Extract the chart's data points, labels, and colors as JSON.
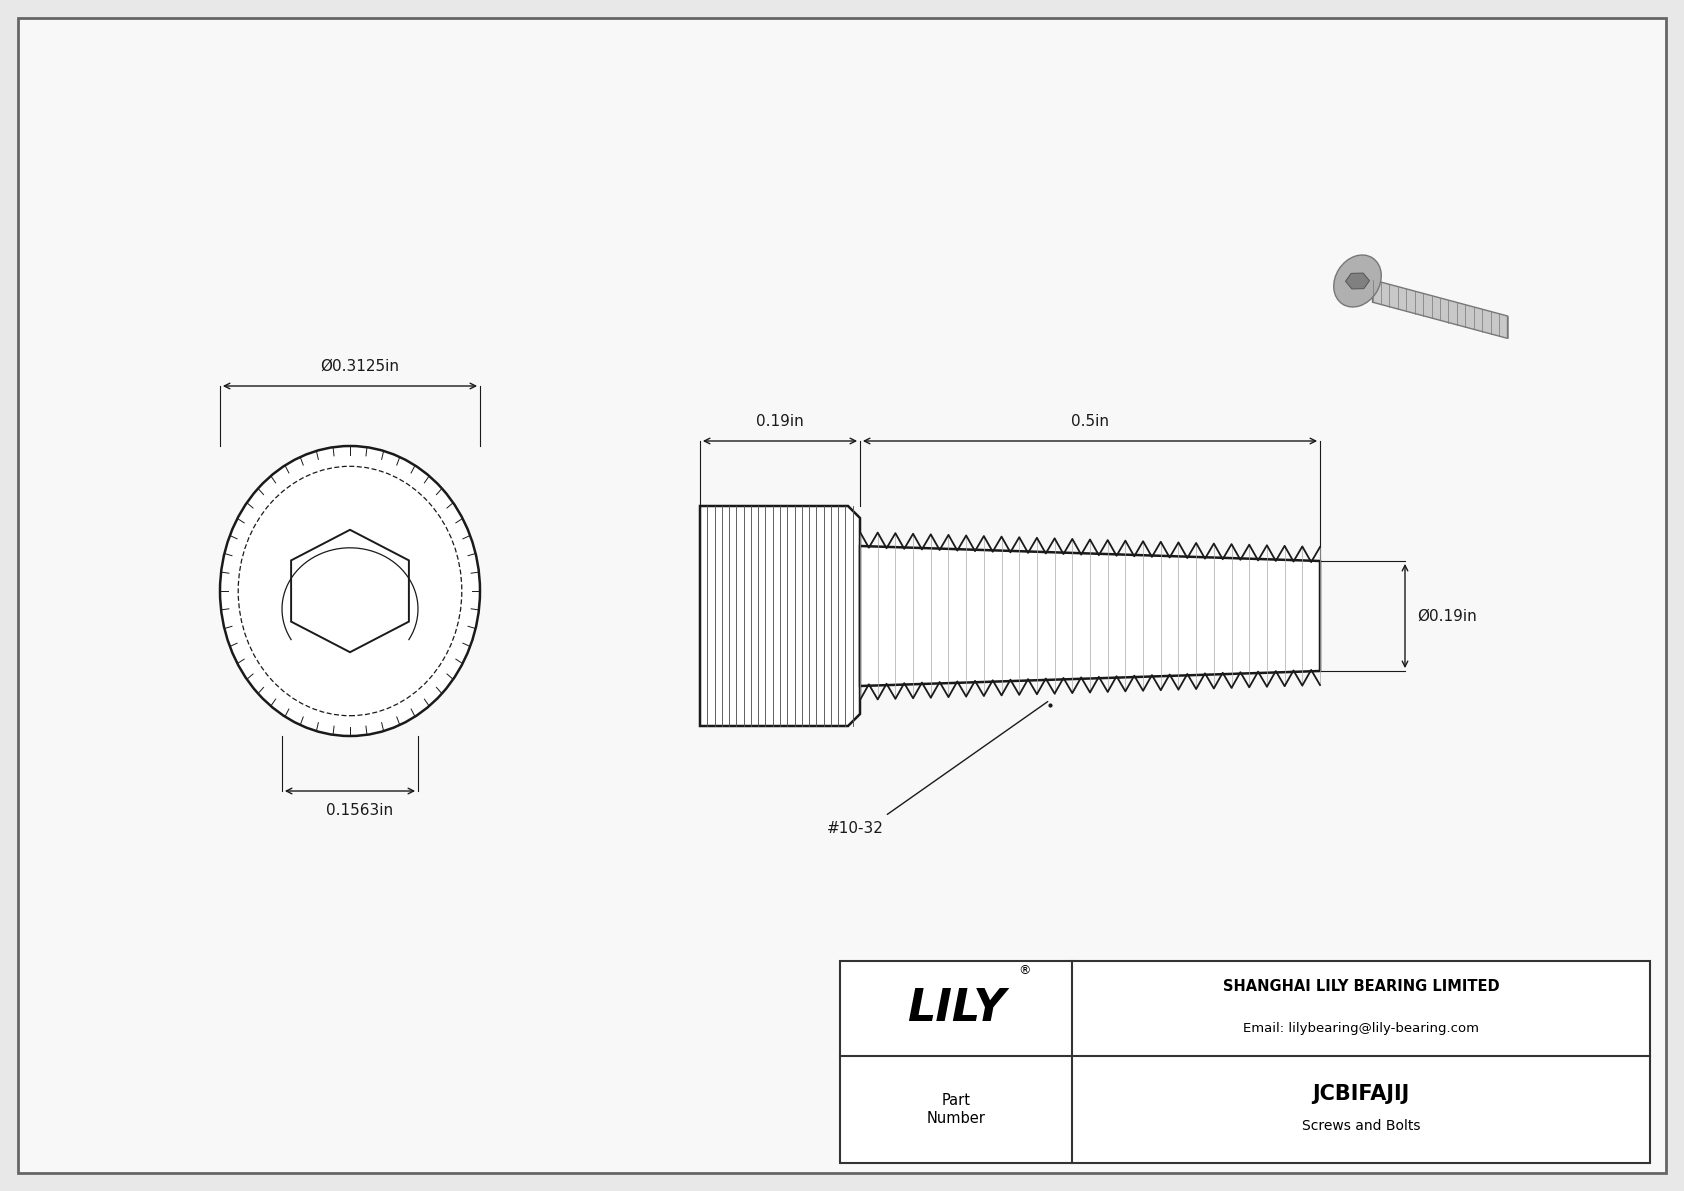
{
  "bg_color": "#e8e8e8",
  "draw_area_color": "#f5f5f5",
  "line_color": "#1a1a1a",
  "dim_color": "#1a1a1a",
  "title": "JCBIFAJIJ",
  "subtitle": "Screws and Bolts",
  "company": "SHANGHAI LILY BEARING LIMITED",
  "email": "Email: lilybearing@lily-bearing.com",
  "part_label": "Part\nNumber",
  "dim_outer_diameter": "Ø0.3125in",
  "dim_hex_width": "0.1563in",
  "dim_head_length": "0.19in",
  "dim_shaft_length": "0.5in",
  "dim_shaft_diameter": "Ø0.19in",
  "thread_label": "#10-32",
  "border_lw": 2.0,
  "tb_border_lw": 1.5
}
